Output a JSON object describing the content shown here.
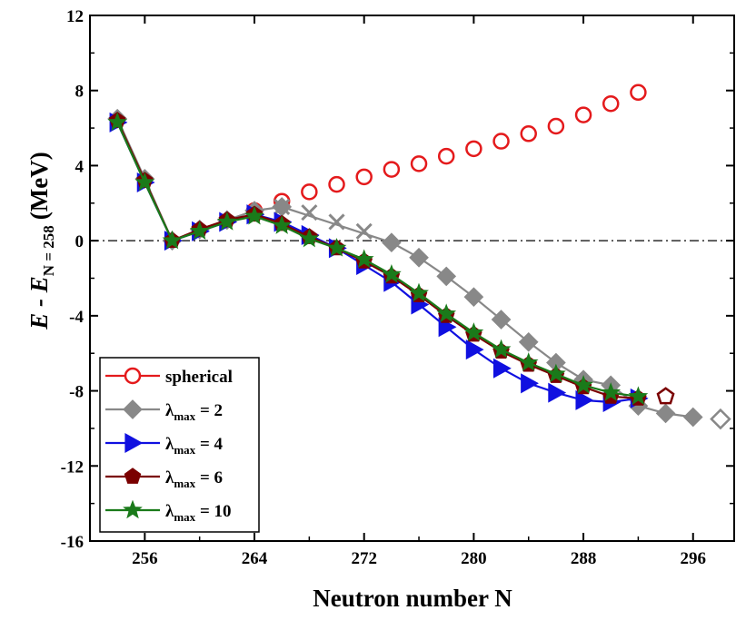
{
  "chart_data": {
    "type": "line",
    "xlabel": "Neutron number N",
    "ylabel": {
      "main": "E - E",
      "subscript": "N = 258",
      "unit": "(MeV)"
    },
    "xlim": [
      252,
      299
    ],
    "ylim": [
      -16,
      12
    ],
    "xticks": [
      256,
      264,
      272,
      280,
      288,
      296
    ],
    "yticks": [
      -16,
      -12,
      -8,
      -4,
      0,
      4,
      8,
      12
    ],
    "reference_line": {
      "y": 0,
      "style": "dash-dot"
    },
    "legend_position": "bottom-left",
    "series": [
      {
        "name": "spherical",
        "label_main": "spherical",
        "label_sub": "",
        "label_tail": "",
        "color": "#e41a1c",
        "marker": "circle-open",
        "x": [
          264,
          266,
          268,
          270,
          272,
          274,
          276,
          278,
          280,
          282,
          284,
          286,
          288,
          290,
          292
        ],
        "y": [
          1.6,
          2.1,
          2.6,
          3.0,
          3.4,
          3.8,
          4.1,
          4.5,
          4.9,
          5.3,
          5.7,
          6.1,
          6.7,
          7.3,
          7.9
        ],
        "open_from": 0
      },
      {
        "name": "λmax = 2",
        "label_main": "λ",
        "label_sub": "max",
        "label_tail": " = 2",
        "color": "#888888",
        "marker": "diamond",
        "x": [
          254,
          256,
          258,
          260,
          262,
          264,
          266,
          274,
          276,
          278,
          280,
          282,
          284,
          286,
          288,
          290,
          292,
          294,
          296,
          298
        ],
        "y": [
          6.5,
          3.3,
          0.0,
          0.6,
          1.1,
          1.6,
          1.8,
          -0.1,
          -0.9,
          -1.9,
          -3.0,
          -4.2,
          -5.4,
          -6.5,
          -7.4,
          -7.7,
          -8.8,
          -9.2,
          -9.4,
          -9.5
        ],
        "open_from": 19,
        "crosses": {
          "x": [
            266,
            268,
            270,
            272
          ],
          "y": [
            1.8,
            1.5,
            1.0,
            0.5
          ]
        }
      },
      {
        "name": "λmax = 4",
        "label_main": "λ",
        "label_sub": "max",
        "label_tail": " = 4",
        "color": "#1010e0",
        "marker": "triangle-right",
        "x": [
          254,
          256,
          258,
          260,
          262,
          264,
          266,
          268,
          270,
          272,
          274,
          276,
          278,
          280,
          282,
          284,
          286,
          288,
          290,
          292
        ],
        "y": [
          6.3,
          3.1,
          0.0,
          0.5,
          1.0,
          1.4,
          1.0,
          0.3,
          -0.4,
          -1.3,
          -2.2,
          -3.4,
          -4.6,
          -5.8,
          -6.8,
          -7.6,
          -8.1,
          -8.5,
          -8.6,
          -8.4
        ],
        "open_from": 99
      },
      {
        "name": "λmax = 6",
        "label_main": "λ",
        "label_sub": "max",
        "label_tail": " = 6",
        "color": "#7a0000",
        "marker": "pentagon",
        "x": [
          254,
          256,
          258,
          260,
          262,
          264,
          266,
          268,
          270,
          272,
          274,
          276,
          278,
          280,
          282,
          284,
          286,
          288,
          290,
          292,
          294
        ],
        "y": [
          6.4,
          3.2,
          0.0,
          0.6,
          1.1,
          1.4,
          0.9,
          0.2,
          -0.4,
          -1.1,
          -1.9,
          -2.9,
          -4.0,
          -5.0,
          -5.9,
          -6.6,
          -7.2,
          -7.8,
          -8.3,
          -8.4,
          -8.3
        ],
        "open_from": 20
      },
      {
        "name": "λmax = 10",
        "label_main": "λ",
        "label_sub": "max",
        "label_tail": " = 10",
        "color": "#1a7a1a",
        "marker": "star",
        "x": [
          254,
          256,
          258,
          260,
          262,
          264,
          266,
          268,
          270,
          272,
          274,
          276,
          278,
          280,
          282,
          284,
          286,
          288,
          290,
          292
        ],
        "y": [
          6.3,
          3.1,
          0.0,
          0.5,
          1.0,
          1.3,
          0.8,
          0.1,
          -0.4,
          -1.0,
          -1.8,
          -2.8,
          -3.9,
          -4.9,
          -5.8,
          -6.5,
          -7.1,
          -7.7,
          -8.1,
          -8.3
        ],
        "open_from": 99
      }
    ]
  }
}
